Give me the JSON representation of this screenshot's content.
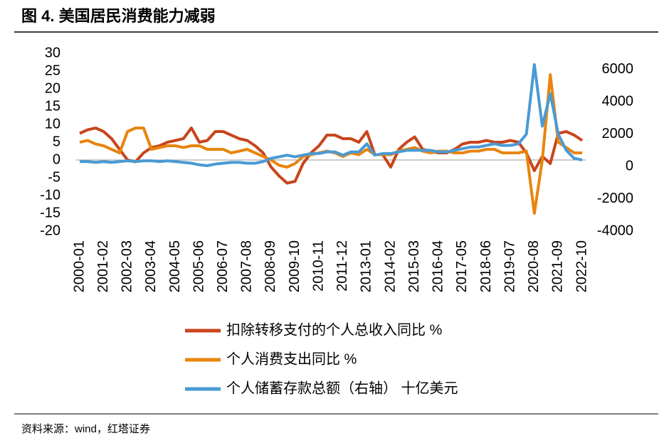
{
  "chart_data": {
    "type": "line",
    "title": "图 4. 美国居民消费能力减弱",
    "source": "资料来源：wind，红塔证券",
    "categories": [
      "2000-01",
      null,
      null,
      "2001-02",
      null,
      null,
      "2002-03",
      null,
      null,
      "2003-04",
      null,
      null,
      "2004-05",
      null,
      null,
      "2005-06",
      null,
      null,
      "2006-07",
      null,
      null,
      "2007-08",
      null,
      null,
      "2008-09",
      null,
      null,
      "2009-10",
      null,
      null,
      "2010-11",
      null,
      null,
      "2011-12",
      null,
      null,
      "2013-01",
      null,
      null,
      "2014-02",
      null,
      null,
      "2015-03",
      null,
      null,
      "2016-04",
      null,
      null,
      "2017-05",
      null,
      null,
      "2018-06",
      null,
      null,
      "2019-07",
      null,
      null,
      "2020-08",
      null,
      null,
      "2021-09",
      null,
      null,
      "2022-10"
    ],
    "series": [
      {
        "name": "扣除转移支付的个人总收入同比 %",
        "color": "#c8451c",
        "values": [
          7.5,
          8.5,
          9,
          8,
          6,
          3,
          0,
          -0.5,
          2,
          3.5,
          4,
          5,
          5.5,
          6,
          9,
          5,
          5.5,
          8,
          8,
          7,
          6,
          5.5,
          4,
          2,
          -2,
          -4.5,
          -6.5,
          -6,
          -1,
          2,
          4,
          7,
          7,
          6,
          6,
          5,
          8,
          1.5,
          1.5,
          -2,
          3,
          5,
          6.5,
          3,
          2.5,
          2,
          2,
          3,
          4.5,
          5,
          5,
          5.5,
          5,
          5,
          5.5,
          5,
          2,
          -3,
          1,
          -1,
          7.5,
          8,
          7,
          5.5
        ]
      },
      {
        "name": "个人消费支出同比 %",
        "color": "#e8850e",
        "values": [
          5,
          5.5,
          4.5,
          4,
          3,
          2,
          8,
          9,
          9,
          3,
          3.5,
          4,
          4,
          3.5,
          4,
          4,
          3,
          3,
          3,
          2,
          2.5,
          3,
          2,
          1,
          0,
          -1.5,
          -2,
          -1,
          1,
          1.5,
          2,
          2.5,
          2,
          1,
          2,
          1.5,
          3,
          1.5,
          1.5,
          1.5,
          2.5,
          3,
          3.5,
          2.5,
          2,
          2.5,
          2.5,
          2,
          2,
          2.5,
          2.5,
          3,
          3,
          2,
          2,
          2,
          2.5,
          -15,
          0,
          24,
          5,
          3.5,
          2,
          2
        ]
      },
      {
        "name": "个人储蓄存款总额（右轴） 十亿美元",
        "color": "#4a9ad4",
        "axis": "y2",
        "values": [
          300,
          300,
          250,
          300,
          250,
          300,
          350,
          300,
          350,
          350,
          300,
          350,
          300,
          250,
          200,
          100,
          50,
          150,
          200,
          250,
          250,
          200,
          200,
          300,
          500,
          600,
          700,
          600,
          700,
          800,
          800,
          900,
          900,
          700,
          900,
          900,
          1400,
          700,
          800,
          800,
          900,
          1000,
          1000,
          1000,
          1000,
          900,
          900,
          1000,
          1100,
          1200,
          1200,
          1300,
          1400,
          1300,
          1300,
          1400,
          2000,
          6300,
          2500,
          4500,
          2000,
          1000,
          500,
          400
        ]
      }
    ],
    "ylim": [
      -20,
      30
    ],
    "yticks": [
      30,
      25,
      20,
      15,
      10,
      5,
      0,
      -5,
      -10,
      -15,
      -20
    ],
    "y2lim": [
      -4000,
      7000
    ],
    "y2ticks": [
      6000,
      4000,
      2000,
      0,
      -2000,
      -4000
    ]
  }
}
